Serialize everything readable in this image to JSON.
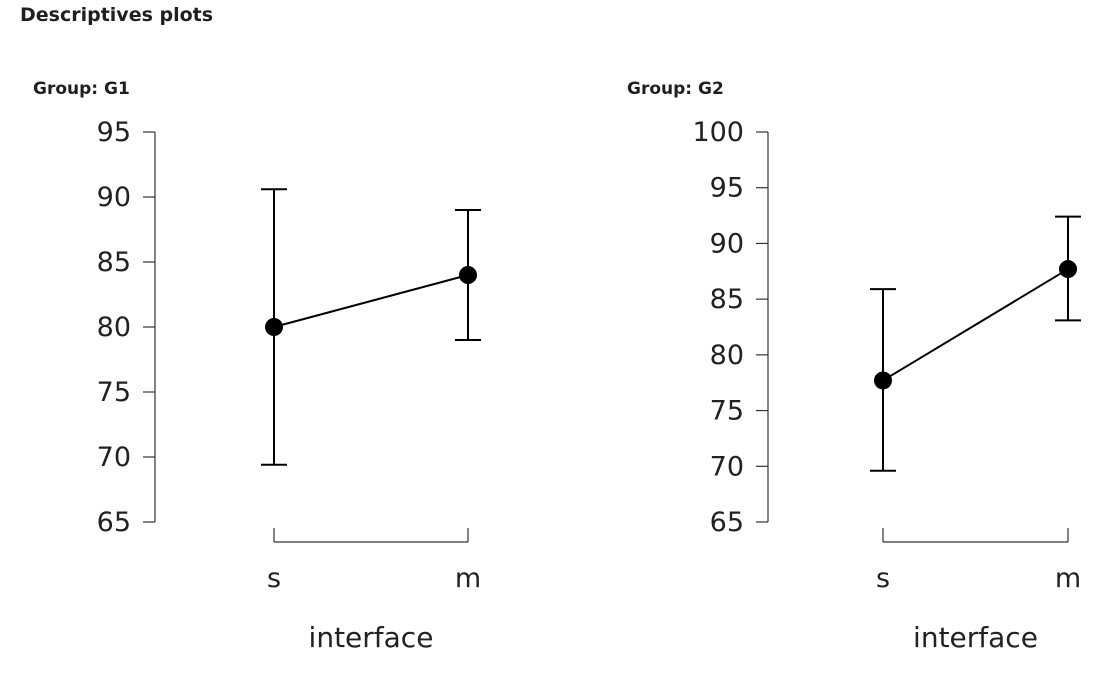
{
  "page_title": "Descriptives plots",
  "chart_data": [
    {
      "type": "line",
      "title": "Group: G1",
      "xlabel": "interface",
      "ylabel": "",
      "categories": [
        "s",
        "m"
      ],
      "yticks": [
        65,
        70,
        75,
        80,
        85,
        90,
        95
      ],
      "ylim": [
        65,
        95
      ],
      "series": [
        {
          "values": [
            80,
            84
          ],
          "error_lower": [
            69.4,
            79
          ],
          "error_upper": [
            90.6,
            89
          ]
        }
      ],
      "grid": false,
      "color": "#000000"
    },
    {
      "type": "line",
      "title": "Group: G2",
      "xlabel": "interface",
      "ylabel": "",
      "categories": [
        "s",
        "m"
      ],
      "yticks": [
        65,
        70,
        75,
        80,
        85,
        90,
        95,
        100
      ],
      "ylim": [
        65,
        100
      ],
      "series": [
        {
          "values": [
            77.7,
            87.7
          ],
          "error_lower": [
            69.6,
            83.1
          ],
          "error_upper": [
            85.9,
            92.4
          ]
        }
      ],
      "grid": false,
      "color": "#000000"
    }
  ]
}
